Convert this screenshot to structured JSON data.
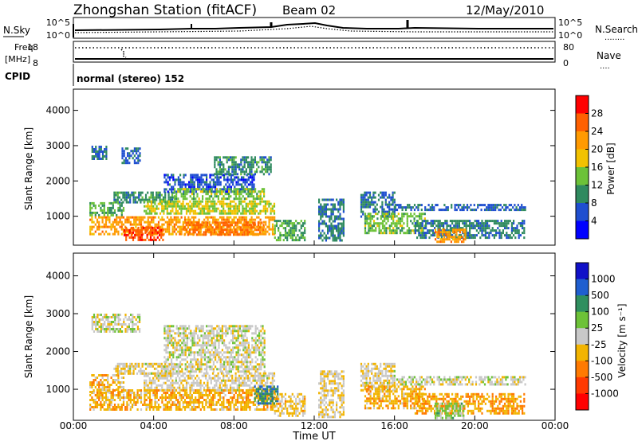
{
  "header": {
    "station": "Zhongshan Station (fitACF)",
    "beam": "Beam 02",
    "date": "12/May/2010"
  },
  "summary_panels": {
    "nsky": {
      "left_label": "N.Sky",
      "left_ticks": [
        "10^5",
        "10^0"
      ],
      "right_ticks": [
        "10^5",
        "10^0"
      ],
      "right_label": "N.Search",
      "right_legend_line": "........"
    },
    "freq": {
      "left_label_line1": "Freq.",
      "left_label_line2": "[MHz]",
      "left_ticks": [
        "18",
        "8"
      ],
      "right_ticks": [
        "80",
        "0"
      ],
      "right_label": "Nave",
      "right_legend_line": "...."
    },
    "cpid": {
      "label": "CPID",
      "mode_text": "normal (stereo) 152"
    }
  },
  "x_axis": {
    "label": "Time UT",
    "ticks": [
      "00:00",
      "04:00",
      "08:00",
      "12:00",
      "16:00",
      "20:00",
      "00:00"
    ],
    "range_hours": [
      0,
      24
    ]
  },
  "colors": {
    "power_scale": [
      "#0000ff",
      "#1f4fd0",
      "#2f8a5f",
      "#6cc238",
      "#f2c200",
      "#ff9a00",
      "#ff6000",
      "#ff0000"
    ],
    "velocity_scale": [
      "#1010c8",
      "#1f5fd0",
      "#2f8f5f",
      "#6dc238",
      "#c8c8c8",
      "#f2b400",
      "#ff7a00",
      "#ff3a00",
      "#ff0000"
    ]
  },
  "chart_data": [
    {
      "type": "heatmap",
      "name": "power",
      "ylabel": "Slant Range [km]",
      "yticks": [
        "1000",
        "2000",
        "3000",
        "4000"
      ],
      "ylim": [
        180,
        4600
      ],
      "xlim": [
        0,
        24
      ],
      "colorbar": {
        "label": "Power [dB]",
        "ticks": [
          "28",
          "24",
          "20",
          "16",
          "12",
          "8",
          "4"
        ],
        "range": [
          0,
          32
        ]
      },
      "regions": [
        {
          "t0": 0.9,
          "t1": 1.6,
          "r0": 2650,
          "r1": 3000,
          "value": 8
        },
        {
          "t0": 2.4,
          "t1": 3.3,
          "r0": 2500,
          "r1": 2950,
          "value": 7
        },
        {
          "t0": 0.8,
          "t1": 2.5,
          "r0": 1000,
          "r1": 1400,
          "value": 12
        },
        {
          "t0": 2.0,
          "t1": 5.0,
          "r0": 1400,
          "r1": 1700,
          "value": 10
        },
        {
          "t0": 4.5,
          "t1": 9.0,
          "r0": 1700,
          "r1": 2200,
          "value": 6
        },
        {
          "t0": 5.0,
          "t1": 9.5,
          "r0": 1500,
          "r1": 1800,
          "value": 14
        },
        {
          "t0": 7.0,
          "t1": 9.8,
          "r0": 2200,
          "r1": 2700,
          "value": 10
        },
        {
          "t0": 3.5,
          "t1": 10.0,
          "r0": 1050,
          "r1": 1450,
          "value": 16
        },
        {
          "t0": 0.8,
          "t1": 10.0,
          "r0": 500,
          "r1": 1000,
          "value": 22
        },
        {
          "t0": 2.5,
          "t1": 4.5,
          "r0": 350,
          "r1": 700,
          "value": 27
        },
        {
          "t0": 5.5,
          "t1": 9.5,
          "r0": 500,
          "r1": 850,
          "value": 25
        },
        {
          "t0": 10.0,
          "t1": 11.5,
          "r0": 300,
          "r1": 900,
          "value": 12
        },
        {
          "t0": 12.2,
          "t1": 13.5,
          "r0": 300,
          "r1": 1500,
          "value": 9
        },
        {
          "t0": 14.3,
          "t1": 16.0,
          "r0": 1000,
          "r1": 1700,
          "value": 8
        },
        {
          "t0": 14.5,
          "t1": 17.5,
          "r0": 500,
          "r1": 1100,
          "value": 14
        },
        {
          "t0": 16.0,
          "t1": 22.5,
          "r0": 1150,
          "r1": 1350,
          "value": 7
        },
        {
          "t0": 17.0,
          "t1": 22.5,
          "r0": 400,
          "r1": 900,
          "value": 9
        },
        {
          "t0": 18.0,
          "t1": 19.5,
          "r0": 250,
          "r1": 650,
          "value": 22
        }
      ]
    },
    {
      "type": "heatmap",
      "name": "velocity",
      "ylabel": "Slant Range [km]",
      "yticks": [
        "1000",
        "2000",
        "3000",
        "4000"
      ],
      "ylim": [
        180,
        4600
      ],
      "xlim": [
        0,
        24
      ],
      "colorbar": {
        "label": "Velocity [m s⁻¹]",
        "ticks": [
          "1000",
          "500",
          "100",
          "25",
          "-25",
          "-100",
          "-500",
          "-1000"
        ],
        "range": [
          -1200,
          1200
        ]
      },
      "regions": [
        {
          "t0": 0.9,
          "t1": 3.3,
          "r0": 2500,
          "r1": 3000,
          "value": 0
        },
        {
          "t0": 0.8,
          "t1": 2.5,
          "r0": 900,
          "r1": 1400,
          "value": -250
        },
        {
          "t0": 2.0,
          "t1": 5.0,
          "r0": 1400,
          "r1": 1700,
          "value": -80
        },
        {
          "t0": 4.5,
          "t1": 9.5,
          "r0": 1500,
          "r1": 2700,
          "value": 0
        },
        {
          "t0": 3.5,
          "t1": 10.0,
          "r0": 1000,
          "r1": 1450,
          "value": -60
        },
        {
          "t0": 0.8,
          "t1": 10.0,
          "r0": 450,
          "r1": 1000,
          "value": -300
        },
        {
          "t0": 9.0,
          "t1": 10.2,
          "r0": 600,
          "r1": 1100,
          "value": 600
        },
        {
          "t0": 10.0,
          "t1": 11.5,
          "r0": 300,
          "r1": 900,
          "value": -200
        },
        {
          "t0": 12.2,
          "t1": 13.5,
          "r0": 300,
          "r1": 1500,
          "value": -100
        },
        {
          "t0": 14.3,
          "t1": 16.0,
          "r0": 1000,
          "r1": 1700,
          "value": -60
        },
        {
          "t0": 14.5,
          "t1": 17.5,
          "r0": 500,
          "r1": 1100,
          "value": -300
        },
        {
          "t0": 16.0,
          "t1": 22.5,
          "r0": 1150,
          "r1": 1350,
          "value": 0
        },
        {
          "t0": 17.0,
          "t1": 22.5,
          "r0": 350,
          "r1": 900,
          "value": -350
        },
        {
          "t0": 18.0,
          "t1": 19.5,
          "r0": 250,
          "r1": 650,
          "value": 200
        }
      ]
    }
  ]
}
